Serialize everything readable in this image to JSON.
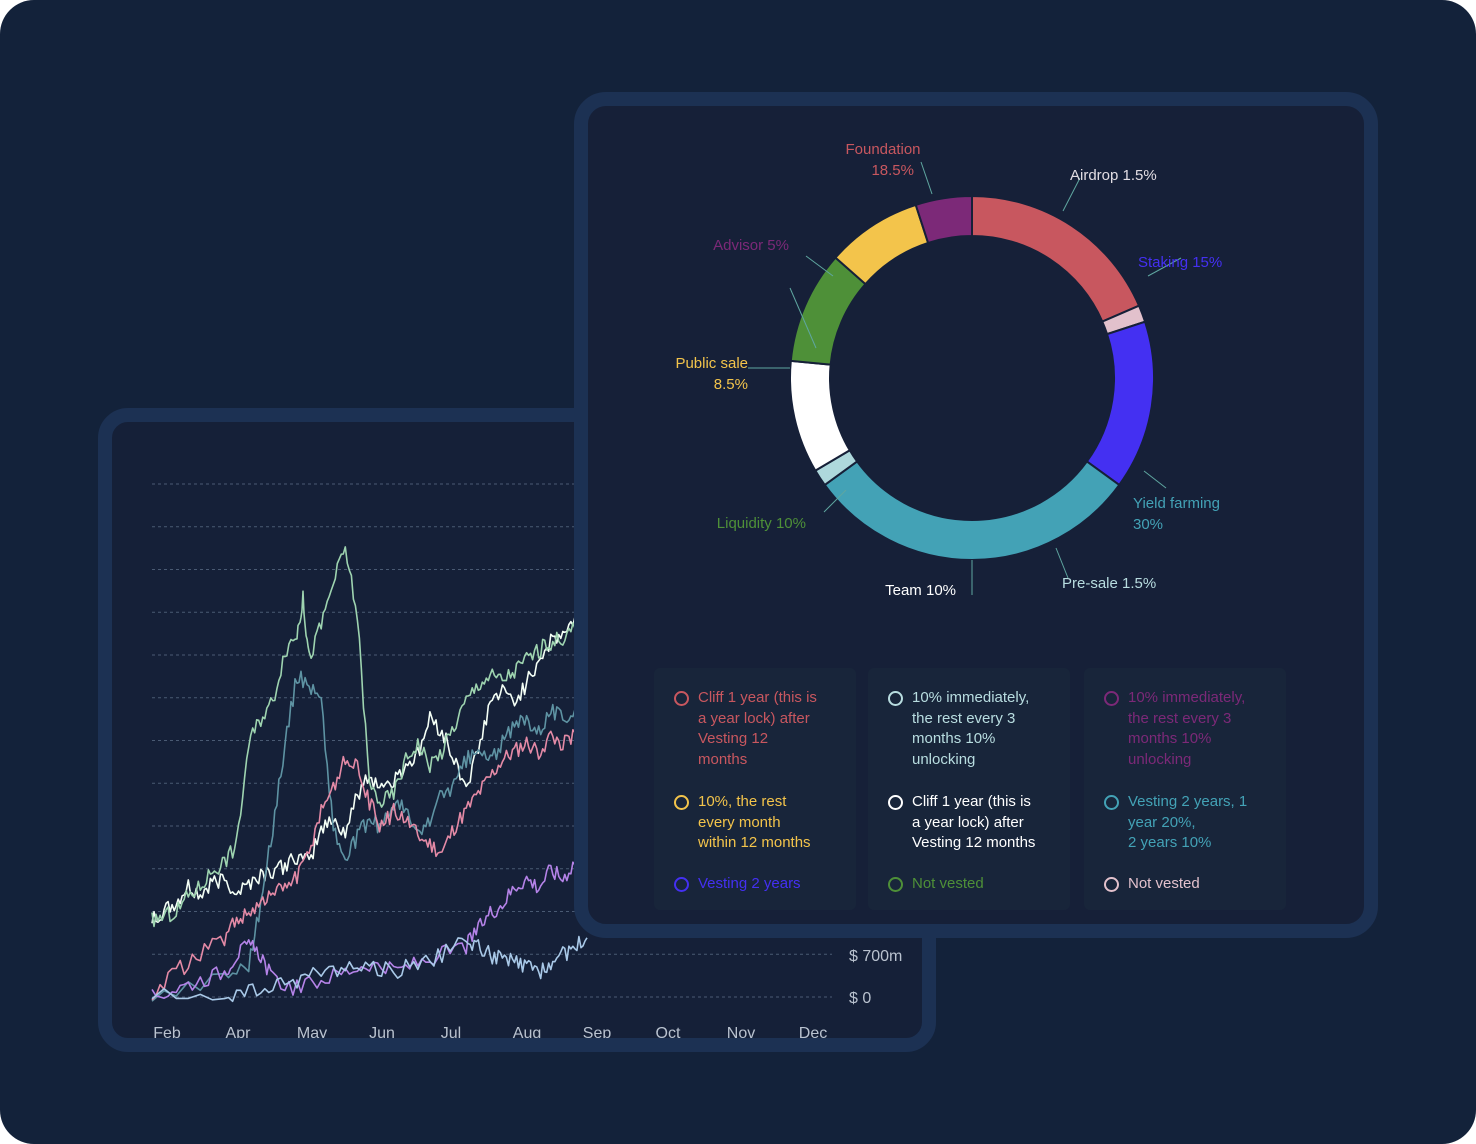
{
  "chart_data": [
    {
      "type": "line",
      "x_ticks": [
        "Feb",
        "Apr",
        "May",
        "Jun",
        "Jul",
        "Aug",
        "Sep",
        "Oct",
        "Nov",
        "Dec"
      ],
      "y_tick_labels": [
        "$ 700m",
        "$ 0"
      ],
      "grid": true,
      "series": [
        {
          "color": "#f4fff6",
          "points": [
            [
              0,
              18
            ],
            [
              10,
              20
            ],
            [
              20,
              22
            ],
            [
              30,
              26
            ],
            [
              40,
              24
            ],
            [
              50,
              27
            ],
            [
              60,
              28
            ],
            [
              70,
              25
            ],
            [
              80,
              27
            ],
            [
              90,
              29
            ],
            [
              100,
              30
            ],
            [
              110,
              31
            ],
            [
              120,
              33
            ],
            [
              130,
              32
            ],
            [
              140,
              40
            ],
            [
              150,
              42
            ],
            [
              160,
              39
            ],
            [
              170,
              48
            ],
            [
              180,
              52
            ],
            [
              190,
              50
            ],
            [
              200,
              51
            ],
            [
              210,
              55
            ],
            [
              220,
              57
            ],
            [
              230,
              66
            ],
            [
              240,
              63
            ],
            [
              250,
              56
            ],
            [
              260,
              50
            ],
            [
              270,
              58
            ],
            [
              280,
              70
            ],
            [
              290,
              72
            ],
            [
              300,
              70
            ],
            [
              310,
              74
            ],
            [
              320,
              80
            ],
            [
              330,
              84
            ],
            [
              340,
              86
            ],
            [
              350,
              89
            ],
            [
              360,
              88
            ]
          ]
        },
        {
          "color": "#9ed4b0",
          "points": [
            [
              0,
              18
            ],
            [
              10,
              19
            ],
            [
              20,
              20
            ],
            [
              30,
              24
            ],
            [
              40,
              26
            ],
            [
              50,
              30
            ],
            [
              60,
              32
            ],
            [
              70,
              36
            ],
            [
              80,
              60
            ],
            [
              90,
              66
            ],
            [
              100,
              70
            ],
            [
              110,
              82
            ],
            [
              120,
              86
            ],
            [
              125,
              94
            ],
            [
              130,
              80
            ],
            [
              140,
              88
            ],
            [
              150,
              98
            ],
            [
              160,
              106
            ],
            [
              170,
              90
            ],
            [
              180,
              50
            ],
            [
              190,
              46
            ],
            [
              200,
              48
            ],
            [
              210,
              56
            ],
            [
              220,
              60
            ],
            [
              230,
              55
            ],
            [
              240,
              58
            ],
            [
              250,
              64
            ],
            [
              260,
              70
            ],
            [
              270,
              74
            ],
            [
              280,
              76
            ],
            [
              290,
              75
            ],
            [
              300,
              77
            ],
            [
              310,
              80
            ],
            [
              320,
              82
            ],
            [
              330,
              84
            ],
            [
              340,
              85
            ],
            [
              350,
              87
            ],
            [
              360,
              88
            ]
          ]
        },
        {
          "color": "#5e93a3",
          "points": [
            [
              0,
              0
            ],
            [
              60,
              5
            ],
            [
              80,
              8
            ],
            [
              90,
              22
            ],
            [
              100,
              40
            ],
            [
              110,
              60
            ],
            [
              120,
              76
            ],
            [
              130,
              74
            ],
            [
              140,
              70
            ],
            [
              150,
              40
            ],
            [
              160,
              32
            ],
            [
              170,
              38
            ],
            [
              180,
              42
            ],
            [
              190,
              40
            ],
            [
              200,
              46
            ],
            [
              210,
              44
            ],
            [
              220,
              38
            ],
            [
              230,
              42
            ],
            [
              240,
              48
            ],
            [
              250,
              50
            ],
            [
              260,
              56
            ],
            [
              270,
              58
            ],
            [
              280,
              56
            ],
            [
              290,
              60
            ],
            [
              300,
              64
            ],
            [
              310,
              66
            ],
            [
              320,
              63
            ],
            [
              330,
              68
            ],
            [
              340,
              66
            ],
            [
              350,
              68
            ],
            [
              360,
              70
            ]
          ]
        },
        {
          "color": "#e48aa6",
          "points": [
            [
              0,
              0
            ],
            [
              20,
              6
            ],
            [
              40,
              10
            ],
            [
              60,
              14
            ],
            [
              70,
              18
            ],
            [
              80,
              20
            ],
            [
              90,
              22
            ],
            [
              100,
              24
            ],
            [
              110,
              26
            ],
            [
              120,
              28
            ],
            [
              130,
              34
            ],
            [
              140,
              44
            ],
            [
              150,
              50
            ],
            [
              160,
              56
            ],
            [
              170,
              54
            ],
            [
              180,
              46
            ],
            [
              190,
              40
            ],
            [
              200,
              44
            ],
            [
              210,
              42
            ],
            [
              220,
              38
            ],
            [
              230,
              36
            ],
            [
              240,
              34
            ],
            [
              250,
              40
            ],
            [
              260,
              44
            ],
            [
              270,
              48
            ],
            [
              280,
              52
            ],
            [
              290,
              56
            ],
            [
              300,
              58
            ],
            [
              310,
              60
            ],
            [
              320,
              58
            ],
            [
              330,
              62
            ],
            [
              340,
              60
            ],
            [
              350,
              62
            ],
            [
              360,
              64
            ]
          ]
        },
        {
          "color": "#b583e8",
          "points": [
            [
              0,
              0
            ],
            [
              20,
              2
            ],
            [
              40,
              4
            ],
            [
              60,
              6
            ],
            [
              70,
              10
            ],
            [
              80,
              12
            ],
            [
              90,
              10
            ],
            [
              100,
              4
            ],
            [
              120,
              2
            ],
            [
              140,
              4
            ],
            [
              160,
              6
            ],
            [
              180,
              8
            ],
            [
              200,
              6
            ],
            [
              220,
              8
            ],
            [
              240,
              10
            ],
            [
              260,
              12
            ],
            [
              270,
              16
            ],
            [
              280,
              20
            ],
            [
              290,
              22
            ],
            [
              300,
              26
            ],
            [
              310,
              28
            ],
            [
              320,
              26
            ],
            [
              330,
              30
            ],
            [
              340,
              28
            ],
            [
              350,
              32
            ],
            [
              360,
              30
            ]
          ]
        },
        {
          "color": "#a9c9e8",
          "points": [
            [
              0,
              0
            ],
            [
              60,
              0
            ],
            [
              80,
              1
            ],
            [
              100,
              2
            ],
            [
              120,
              4
            ],
            [
              140,
              6
            ],
            [
              160,
              7
            ],
            [
              180,
              7
            ],
            [
              200,
              6
            ],
            [
              220,
              8
            ],
            [
              240,
              10
            ],
            [
              260,
              13
            ],
            [
              270,
              12
            ],
            [
              280,
              10
            ],
            [
              290,
              9
            ],
            [
              300,
              8
            ],
            [
              310,
              7
            ],
            [
              320,
              6
            ],
            [
              330,
              8
            ],
            [
              340,
              10
            ],
            [
              350,
              12
            ],
            [
              360,
              14
            ]
          ]
        }
      ]
    },
    {
      "type": "pie",
      "style": "donut",
      "slices": [
        {
          "label": "Foundation",
          "value": "18.5%",
          "percent": 18.5,
          "color": "#c8575f"
        },
        {
          "label": "Airdrop",
          "value": "1.5%",
          "percent": 1.5,
          "color": "#e2c1cc"
        },
        {
          "label": "Staking",
          "value": "15%",
          "percent": 15,
          "color": "#4430f2"
        },
        {
          "label": "Yield farming",
          "value": "30%",
          "percent": 30,
          "color": "#43a2b6"
        },
        {
          "label": "Pre-sale",
          "value": "1.5%",
          "percent": 1.5,
          "color": "#aed8dc"
        },
        {
          "label": "Team",
          "value": "10%",
          "percent": 10,
          "color": "#ffffff"
        },
        {
          "label": "Liquidity",
          "value": "10%",
          "percent": 10,
          "color": "#4e9038"
        },
        {
          "label": "Public sale",
          "value": "8.5%",
          "percent": 8.5,
          "color": "#f3c44b"
        },
        {
          "label": "Advisor",
          "value": "5%",
          "percent": 5,
          "color": "#7c2978"
        }
      ],
      "slice_labels": [
        {
          "text": "Foundation",
          "color": "#c8575f"
        },
        {
          "text": "18.5%",
          "color": "#c8575f"
        },
        {
          "text": "Airdrop 1.5%",
          "color": "#e2dde3"
        },
        {
          "text": "Staking 15%",
          "color": "#4430f2"
        },
        {
          "text": "Yield farming",
          "color": "#43a2b6"
        },
        {
          "text": "30%",
          "color": "#43a2b6"
        },
        {
          "text": "Pre-sale 1.5%",
          "color": "#b8dde0"
        },
        {
          "text": "Team 10%",
          "color": "#ffffff"
        },
        {
          "text": "Liquidity 10%",
          "color": "#4e9038"
        },
        {
          "text": "Public sale",
          "color": "#f3c44b"
        },
        {
          "text": "8.5%",
          "color": "#f3c44b"
        },
        {
          "text": "Advisor 5%",
          "color": "#7c2978"
        }
      ]
    }
  ],
  "legend": {
    "columns": [
      [
        {
          "text": "Cliff 1 year (this is\na year lock) after\nVesting 12\nmonths",
          "color": "#c8575f"
        },
        {
          "text": "10%, the rest\nevery month\nwithin 12 months",
          "color": "#f3c44b"
        },
        {
          "text": "Vesting 2 years",
          "color": "#4430f2"
        }
      ],
      [
        {
          "text": "10% immediately,\nthe rest every 3\nmonths 10%\nunlocking",
          "color": "#b8dde0"
        },
        {
          "text": "Cliff 1 year (this is\na year lock) after\nVesting 12 months",
          "color": "#ffffff"
        },
        {
          "text": "Not vested",
          "color": "#4e9038"
        }
      ],
      [
        {
          "text": "10% immediately,\nthe rest every 3\nmonths 10%\nunlocking",
          "color": "#7c2978"
        },
        {
          "text": "Vesting 2 years, 1\nyear 20%,\n2 years 10%",
          "color": "#43a2b6"
        },
        {
          "text": "Not vested",
          "color": "#e2c1cc"
        }
      ]
    ]
  }
}
